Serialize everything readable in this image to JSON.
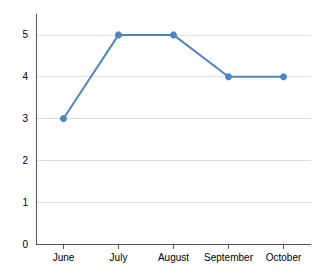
{
  "chart_data": {
    "type": "line",
    "categories": [
      "June",
      "July",
      "August",
      "September",
      "October"
    ],
    "values": [
      3,
      5,
      5,
      4,
      4
    ],
    "color": "#4d86c0",
    "marker": "circle",
    "ylim": [
      0,
      5.5
    ],
    "yticks": [
      0,
      1,
      2,
      3,
      4,
      5
    ],
    "grid": true
  }
}
